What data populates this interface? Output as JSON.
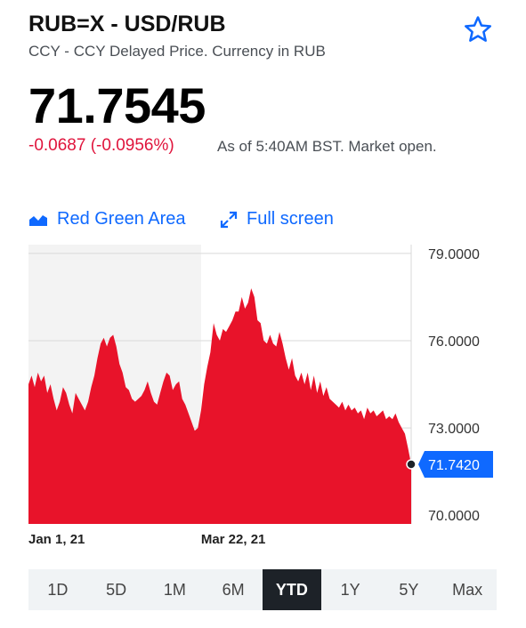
{
  "header": {
    "symbol": "RUB=X - USD/RUB",
    "subtitle": "CCY - CCY Delayed Price. Currency in RUB",
    "price": "71.7545",
    "change": "-0.0687 (-0.0956%)",
    "as_of": "As of 5:40AM BST. Market open."
  },
  "controls": {
    "chart_style_label": "Red Green Area",
    "fullscreen_label": "Full screen",
    "icons": [
      "area-chart-icon",
      "expand-icon",
      "star-icon"
    ]
  },
  "colors": {
    "accent": "#0f69ff",
    "negative": "#e0143c",
    "area_fill": "#e8132a",
    "active_range_bg": "#1d2228"
  },
  "chart_data": {
    "type": "area",
    "y_ticks": [
      "79.0000",
      "76.0000",
      "73.0000",
      "70.0000"
    ],
    "ylim": [
      69.7,
      79.3
    ],
    "x_ticks": [
      {
        "label": "Jan 1, 21",
        "index": 0
      },
      {
        "label": "Mar 22, 21",
        "index": 55
      }
    ],
    "current_value_label": "71.7420",
    "series": [
      {
        "values": [
          74.5,
          74.8,
          74.4,
          74.9,
          74.6,
          74.8,
          74.2,
          74.5,
          74.0,
          73.6,
          73.9,
          74.4,
          74.2,
          73.8,
          73.5,
          74.2,
          74.0,
          73.8,
          73.6,
          73.9,
          74.4,
          74.8,
          75.4,
          75.9,
          76.1,
          75.8,
          76.1,
          76.2,
          75.8,
          75.2,
          74.9,
          74.4,
          74.3,
          74.0,
          73.9,
          74.0,
          74.1,
          74.3,
          74.6,
          74.2,
          73.9,
          73.8,
          74.2,
          74.6,
          74.9,
          74.8,
          74.3,
          74.5,
          74.6,
          74.0,
          73.8,
          73.5,
          73.2,
          72.9,
          73.0,
          73.6,
          74.5,
          75.1,
          75.6,
          76.6,
          76.2,
          76.0,
          76.4,
          76.3,
          76.5,
          76.7,
          77.0,
          77.0,
          77.5,
          77.1,
          77.3,
          77.8,
          77.5,
          76.7,
          76.6,
          76.0,
          75.9,
          76.2,
          75.9,
          75.8,
          76.3,
          75.9,
          75.4,
          75.0,
          75.4,
          74.8,
          74.6,
          74.9,
          74.5,
          74.9,
          74.3,
          74.8,
          74.2,
          74.6,
          74.1,
          74.4,
          74.0,
          73.9,
          73.8,
          73.7,
          73.9,
          73.6,
          73.8,
          73.6,
          73.7,
          73.5,
          73.6,
          73.3,
          73.7,
          73.5,
          73.6,
          73.4,
          73.5,
          73.6,
          73.3,
          73.4,
          73.3,
          73.5,
          73.2,
          73.0,
          72.8,
          72.3,
          71.75
        ]
      }
    ]
  },
  "ranges": {
    "items": [
      "1D",
      "5D",
      "1M",
      "6M",
      "YTD",
      "1Y",
      "5Y",
      "Max"
    ],
    "active": "YTD"
  }
}
